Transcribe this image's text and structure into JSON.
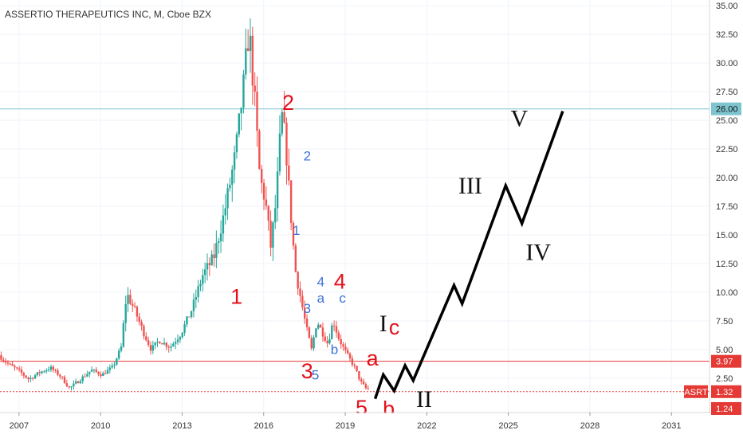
{
  "chart_data": {
    "type": "candlestick",
    "title": "ASSERTIO THERAPEUTICS INC, M, Cboe BZX",
    "ticker": "ASRT",
    "x_ticks": [
      "2007",
      "2010",
      "2013",
      "2016",
      "2019",
      "2022",
      "2025",
      "2028",
      "2031"
    ],
    "y_ticks": [
      "35.00",
      "32.50",
      "30.00",
      "27.50",
      "25.00",
      "22.50",
      "20.00",
      "17.50",
      "15.00",
      "12.50",
      "10.00",
      "7.50",
      "5.00",
      "2.50"
    ],
    "xlim": [
      2006.3,
      2032.4
    ],
    "ylim": [
      -0.5,
      35.5
    ],
    "colors": {
      "up": "#26a69a",
      "down": "#ef5350",
      "projection": "#000000",
      "wave_red": "#e3121c",
      "wave_blue": "#3f72d8",
      "line_blue": "#7ec4cf",
      "line_red": "#e53935"
    },
    "price_path": [
      [
        2006.3,
        4.5
      ],
      [
        2006.6,
        3.8
      ],
      [
        2007.0,
        3.2
      ],
      [
        2007.4,
        2.4
      ],
      [
        2007.8,
        3.0
      ],
      [
        2008.2,
        3.4
      ],
      [
        2008.6,
        2.6
      ],
      [
        2008.9,
        1.6
      ],
      [
        2009.3,
        2.4
      ],
      [
        2009.7,
        3.2
      ],
      [
        2010.1,
        2.8
      ],
      [
        2010.5,
        3.5
      ],
      [
        2010.8,
        5.2
      ],
      [
        2011.0,
        9.9
      ],
      [
        2011.3,
        8.4
      ],
      [
        2011.6,
        6.6
      ],
      [
        2011.9,
        5.0
      ],
      [
        2012.2,
        5.8
      ],
      [
        2012.6,
        5.2
      ],
      [
        2013.0,
        6.4
      ],
      [
        2013.4,
        8.5
      ],
      [
        2013.8,
        11.5
      ],
      [
        2014.2,
        13.0
      ],
      [
        2014.6,
        17.0
      ],
      [
        2015.0,
        22.0
      ],
      [
        2015.3,
        28.0
      ],
      [
        2015.5,
        33.0
      ],
      [
        2015.7,
        27.0
      ],
      [
        2015.9,
        20.0
      ],
      [
        2016.1,
        18.0
      ],
      [
        2016.3,
        14.0
      ],
      [
        2016.5,
        18.0
      ],
      [
        2016.7,
        25.5
      ],
      [
        2016.85,
        23.0
      ],
      [
        2017.0,
        18.0
      ],
      [
        2017.2,
        12.0
      ],
      [
        2017.4,
        9.5
      ],
      [
        2017.6,
        7.0
      ],
      [
        2017.8,
        5.0
      ],
      [
        2018.0,
        7.5
      ],
      [
        2018.2,
        6.5
      ],
      [
        2018.4,
        5.5
      ],
      [
        2018.6,
        7.5
      ],
      [
        2018.8,
        6.0
      ],
      [
        2019.0,
        5.0
      ],
      [
        2019.2,
        4.2
      ],
      [
        2019.4,
        3.4
      ],
      [
        2019.6,
        2.2
      ],
      [
        2019.8,
        1.6
      ]
    ],
    "projection": [
      [
        2020.1,
        0.7
      ],
      [
        2020.4,
        2.8
      ],
      [
        2020.8,
        1.4
      ],
      [
        2021.2,
        3.6
      ],
      [
        2021.5,
        2.3
      ],
      [
        2023.0,
        10.6
      ],
      [
        2023.3,
        9.0
      ],
      [
        2024.9,
        19.3
      ],
      [
        2025.5,
        16.0
      ],
      [
        2027.0,
        25.8
      ]
    ],
    "horizontal_lines": [
      {
        "value": 26.0,
        "label": "26.00",
        "color": "line_blue"
      },
      {
        "value": 3.97,
        "label": "3.97",
        "color": "line_red"
      },
      {
        "value": 1.32,
        "label": "1.32",
        "color": "line_red"
      }
    ],
    "bottom_labels": [
      {
        "value": 1.24,
        "label": "1.24"
      }
    ],
    "annotations": [
      {
        "text": "2",
        "style": "red",
        "x": 2016.9,
        "y": 25.9
      },
      {
        "text": "1",
        "style": "red",
        "x": 2015.0,
        "y": 9.0
      },
      {
        "text": "3",
        "style": "red",
        "x": 2017.6,
        "y": 2.5
      },
      {
        "text": "4",
        "style": "red",
        "x": 2018.8,
        "y": 10.3
      },
      {
        "text": "5",
        "style": "red",
        "x": 2019.6,
        "y": -0.7
      },
      {
        "text": "a",
        "style": "red",
        "x": 2020.0,
        "y": 3.6
      },
      {
        "text": "b",
        "style": "red",
        "x": 2020.6,
        "y": -0.8
      },
      {
        "text": "c",
        "style": "red",
        "x": 2020.8,
        "y": 6.3
      },
      {
        "text": "2",
        "style": "blue",
        "x": 2017.6,
        "y": 21.5
      },
      {
        "text": "1",
        "style": "blue",
        "x": 2017.2,
        "y": 15.0
      },
      {
        "text": "3",
        "style": "blue",
        "x": 2017.6,
        "y": 8.2
      },
      {
        "text": "4",
        "style": "blue",
        "x": 2018.1,
        "y": 10.5
      },
      {
        "text": "a",
        "style": "blue",
        "x": 2018.1,
        "y": 9.1
      },
      {
        "text": "c",
        "style": "blue",
        "x": 2018.9,
        "y": 9.1
      },
      {
        "text": "b",
        "style": "blue",
        "x": 2018.6,
        "y": 4.6
      },
      {
        "text": "5",
        "style": "blue",
        "x": 2017.9,
        "y": 2.4
      },
      {
        "text": "I",
        "style": "black",
        "x": 2020.4,
        "y": 6.6
      },
      {
        "text": "II",
        "style": "black",
        "x": 2021.9,
        "y": 0.0
      },
      {
        "text": "III",
        "style": "black",
        "x": 2023.6,
        "y": 18.6
      },
      {
        "text": "IV",
        "style": "black",
        "x": 2026.1,
        "y": 12.8
      },
      {
        "text": "V",
        "style": "black",
        "x": 2025.4,
        "y": 24.5
      }
    ]
  }
}
